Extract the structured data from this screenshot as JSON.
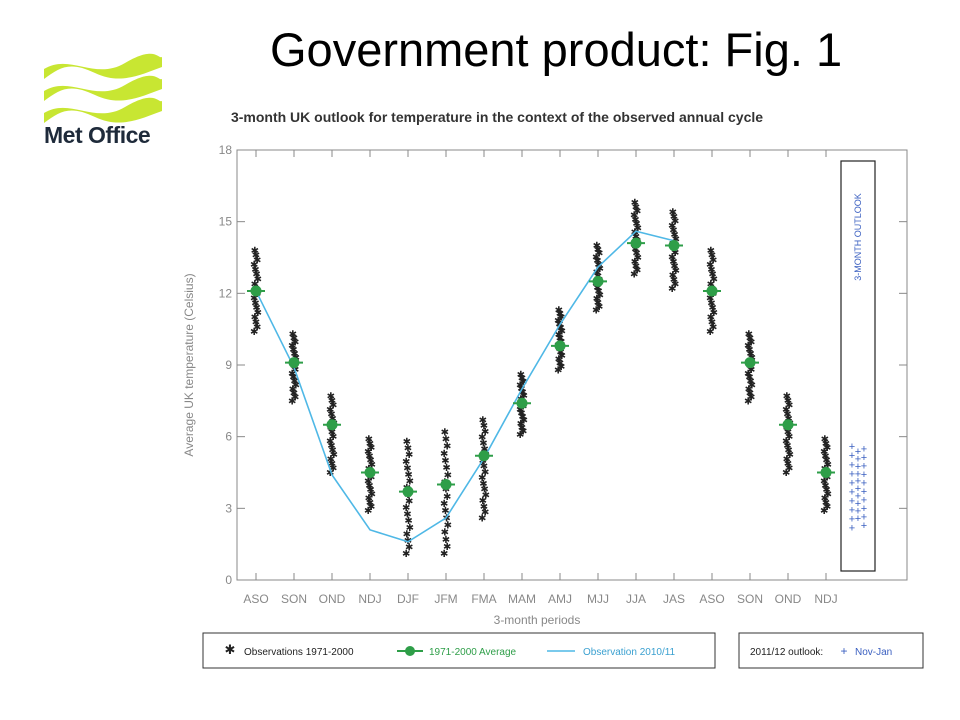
{
  "slide": {
    "title": "Government product: Fig. 1",
    "logo_text": "Met Office",
    "logo_color": "#c8e632"
  },
  "chart_data": {
    "type": "scatter",
    "title": "3-month UK outlook for temperature in the context of the observed annual cycle",
    "xlabel": "3-month periods",
    "ylabel": "Average UK temperature (Celsius)",
    "ylim": [
      0,
      18
    ],
    "yticks": [
      0,
      3,
      6,
      9,
      12,
      15,
      18
    ],
    "categories": [
      "ASO",
      "SON",
      "OND",
      "NDJ",
      "DJF",
      "JFM",
      "FMA",
      "MAM",
      "AMJ",
      "MJJ",
      "JJA",
      "JAS",
      "ASO",
      "SON",
      "OND",
      "NDJ"
    ],
    "outlook_label": "3-MONTH OUTLOOK",
    "series": [
      {
        "name": "Observations 1971-2000",
        "marker": "asterisk",
        "color": "#222222",
        "ranges": [
          [
            10.4,
            13.8
          ],
          [
            7.5,
            10.3
          ],
          [
            4.5,
            7.7
          ],
          [
            2.9,
            5.9
          ],
          [
            1.1,
            5.8
          ],
          [
            1.1,
            6.2
          ],
          [
            2.6,
            6.7
          ],
          [
            6.1,
            8.6
          ],
          [
            8.8,
            11.3
          ],
          [
            11.3,
            14.0
          ],
          [
            12.8,
            15.8
          ],
          [
            12.2,
            15.4
          ],
          [
            10.4,
            13.8
          ],
          [
            7.5,
            10.3
          ],
          [
            4.5,
            7.7
          ],
          [
            2.9,
            5.9
          ]
        ]
      },
      {
        "name": "1971-2000 Average",
        "marker": "circle",
        "color": "#2e9e48",
        "values": [
          12.1,
          9.1,
          6.5,
          4.5,
          3.7,
          4.0,
          5.2,
          7.4,
          9.8,
          12.5,
          14.1,
          14.0,
          12.1,
          9.1,
          6.5,
          4.5
        ]
      },
      {
        "name": "Observation 2010/11",
        "marker": "line",
        "color": "#4fb8e6",
        "values": [
          12.1,
          8.9,
          4.4,
          2.1,
          1.6,
          2.6,
          5.1,
          8.0,
          10.7,
          13.1,
          14.6,
          14.2
        ]
      }
    ],
    "outlook": {
      "name": "Nov-Jan",
      "color": "#3a5fc0",
      "ranges": [
        [
          2.2,
          5.6
        ],
        [
          2.6,
          5.4
        ],
        [
          2.3,
          5.5
        ]
      ]
    },
    "legend": {
      "obs": "Observations 1971-2000",
      "avg": "1971-2000 Average",
      "obs2010": "Observation 2010/11",
      "outlook_prefix": "2011/12 outlook:",
      "outlook_name": "Nov-Jan"
    }
  }
}
